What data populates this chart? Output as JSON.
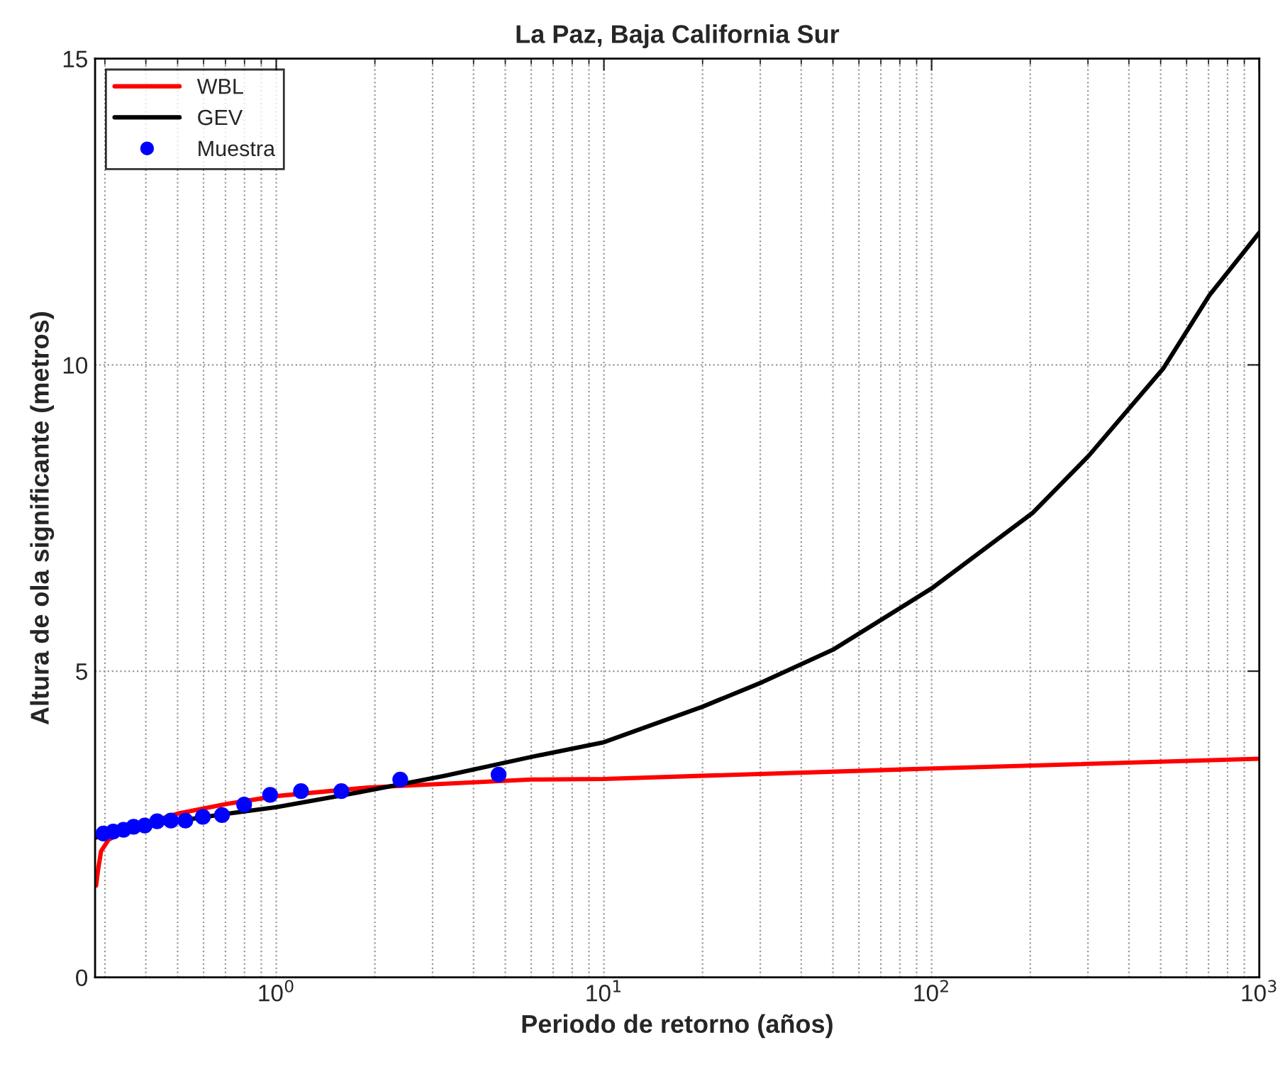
{
  "chart_data": {
    "type": "line",
    "title": "La Paz, Baja California Sur",
    "xlabel": "Periodo de retorno (años)",
    "ylabel": "Altura de ola significante (metros)",
    "log": "x",
    "xlim": [
      0.28,
      1000
    ],
    "ylim": [
      0,
      15
    ],
    "xticks": [
      {
        "value": 1,
        "label": "10$^{0}$"
      },
      {
        "value": 10,
        "label": "10$^{1}$"
      },
      {
        "value": 100,
        "label": "10$^{2}$"
      },
      {
        "value": 1000,
        "label": "10$^{3}$"
      }
    ],
    "yticks": [
      0,
      5,
      10,
      15
    ],
    "grid": true,
    "legend": "top left",
    "series": [
      {
        "name": "WBL",
        "color": "#ff0000",
        "line_style": "solid",
        "marker": "none",
        "x": [
          0.282,
          0.286,
          0.292,
          0.308,
          0.363,
          0.506,
          0.705,
          1.0,
          1.91,
          6.01,
          10,
          100,
          1000
        ],
        "values": [
          1.5,
          1.76,
          2.06,
          2.25,
          2.45,
          2.68,
          2.83,
          2.96,
          3.1,
          3.23,
          3.24,
          3.41,
          3.57
        ]
      },
      {
        "name": "GEV",
        "color": "#000000",
        "line_style": "solid",
        "marker": "none",
        "x": [
          0.28,
          0.4,
          0.683,
          1.0,
          1.91,
          3.25,
          6.01,
          10,
          20,
          30.4,
          50,
          100,
          203,
          302,
          509,
          705,
          1000
        ],
        "values": [
          2.28,
          2.48,
          2.66,
          2.78,
          3.05,
          3.29,
          3.6,
          3.84,
          4.42,
          4.82,
          5.35,
          6.35,
          7.58,
          8.52,
          9.94,
          11.14,
          12.16
        ]
      },
      {
        "name": "Muestra",
        "type": "scatter",
        "color": "#0000ff",
        "marker": "circle",
        "x": [
          0.297,
          0.318,
          0.342,
          0.367,
          0.397,
          0.433,
          0.477,
          0.528,
          0.597,
          0.683,
          0.798,
          0.958,
          1.19,
          1.58,
          2.39,
          4.77
        ],
        "values": [
          2.35,
          2.38,
          2.41,
          2.46,
          2.48,
          2.55,
          2.56,
          2.56,
          2.62,
          2.65,
          2.82,
          2.98,
          3.04,
          3.04,
          3.23,
          3.31
        ]
      }
    ]
  }
}
